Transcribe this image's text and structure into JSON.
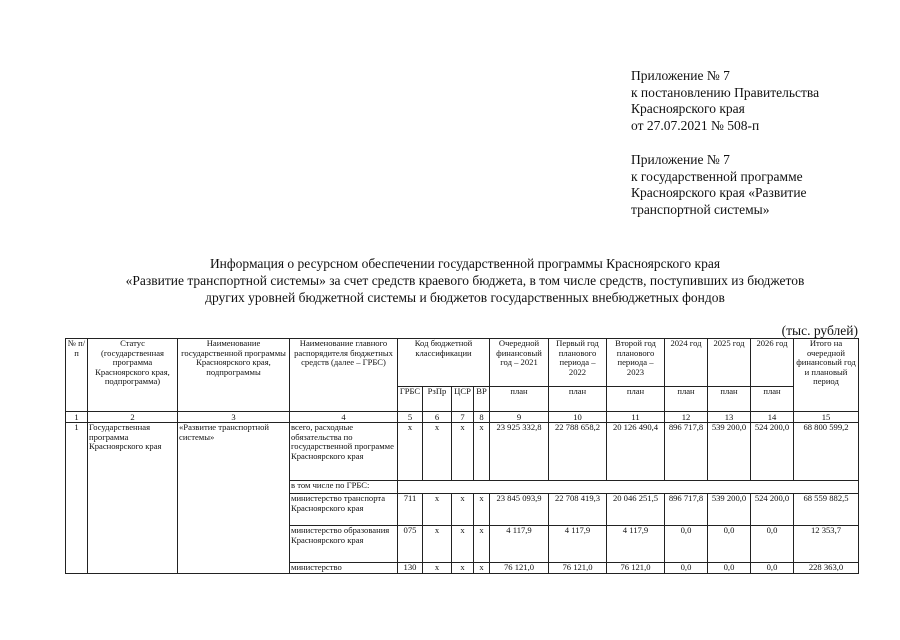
{
  "appendix1": [
    "Приложение № 7",
    "к постановлению Правительства",
    "Красноярского края",
    "от 27.07.2021 № 508-п"
  ],
  "appendix2": [
    "Приложение № 7",
    "к государственной программе",
    "Красноярского края «Развитие",
    "транспортной системы»"
  ],
  "title": [
    "Информация о ресурсном обеспечении государственной программы Красноярского края",
    "«Развитие транспортной системы» за счет средств краевого бюджета, в том числе средств, поступивших из бюджетов",
    "других уровней бюджетной системы и бюджетов государственных внебюджетных фондов"
  ],
  "units": "(тыс. рублей)",
  "header": {
    "num": "№ п/п",
    "status": "Статус (государственная программа Красноярского края, подпрограмма)",
    "program": "Наименование государственной программы Красноярского края, подпрограммы",
    "grbs": "Наименование главного распорядителя бюджетных средств (далее – ГРБС)",
    "code": "Код бюджетной классификации",
    "code_cols": [
      "ГРБС",
      "РзПр",
      "ЦСР",
      "ВР"
    ],
    "years": [
      "Очередной финансовый год – 2021",
      "Первый год планового периода – 2022",
      "Второй год планового периода – 2023",
      "2024 год",
      "2025 год",
      "2026 год"
    ],
    "plan": "план",
    "total": "Итого на очередной финансовый год и плановый период",
    "numbers": [
      "1",
      "2",
      "3",
      "4",
      "5",
      "6",
      "7",
      "8",
      "9",
      "10",
      "11",
      "12",
      "13",
      "14",
      "15"
    ]
  },
  "rows": {
    "num": "1",
    "status": "Государственная программа Красноярского края",
    "program": "«Развитие транспортной системы»",
    "total": {
      "name": "всего, расходные обязательства по государственной программе Красноярского края",
      "codes": [
        "х",
        "х",
        "х",
        "х"
      ],
      "values": [
        "23 925 332,8",
        "22 788 658,2",
        "20 126 490,4",
        "896 717,8",
        "539 200,0",
        "524 200,0",
        "68 800 599,2"
      ]
    },
    "incl": "в том числе по ГРБС:",
    "items": [
      {
        "name": "министерство транспорта Красноярского края",
        "codes": [
          "711",
          "х",
          "х",
          "х"
        ],
        "values": [
          "23 845 093,9",
          "22 708 419,3",
          "20 046 251,5",
          "896 717,8",
          "539 200,0",
          "524 200,0",
          "68 559 882,5"
        ]
      },
      {
        "name": "министерство образования Красноярского края",
        "codes": [
          "075",
          "х",
          "х",
          "х"
        ],
        "values": [
          "4 117,9",
          "4 117,9",
          "4 117,9",
          "0,0",
          "0,0",
          "0,0",
          "12 353,7"
        ]
      },
      {
        "name": "министерство",
        "codes": [
          "130",
          "х",
          "х",
          "х"
        ],
        "values": [
          "76 121,0",
          "76 121,0",
          "76 121,0",
          "0,0",
          "0,0",
          "0,0",
          "228 363,0"
        ]
      }
    ]
  }
}
